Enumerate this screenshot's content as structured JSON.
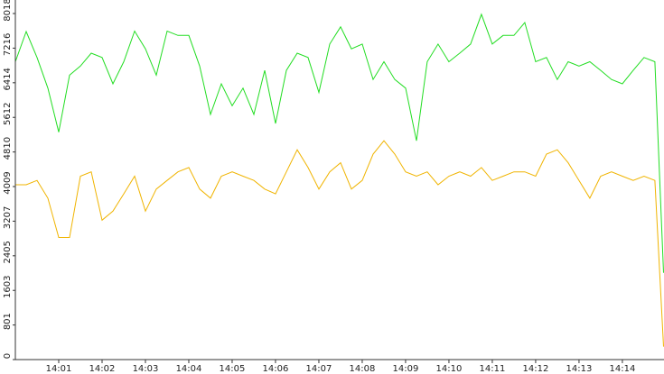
{
  "chart_data": {
    "type": "line",
    "x": [
      0,
      0.25,
      0.5,
      0.75,
      1,
      1.25,
      1.5,
      1.75,
      2,
      2.25,
      2.5,
      2.75,
      3,
      3.25,
      3.5,
      3.75,
      4,
      4.25,
      4.5,
      4.75,
      5,
      5.25,
      5.5,
      5.75,
      6,
      6.25,
      6.5,
      6.75,
      7,
      7.25,
      7.5,
      7.75,
      8,
      8.25,
      8.5,
      8.75,
      9,
      9.25,
      9.5,
      9.75,
      10,
      10.25,
      10.5,
      10.75,
      11,
      11.25,
      11.5,
      11.75,
      12,
      12.25,
      12.5,
      12.75,
      13,
      13.25,
      13.5,
      13.75,
      14,
      14.25,
      14.5,
      14.75,
      14.95
    ],
    "series": [
      {
        "color": "#22dd22",
        "values": [
          6900,
          7600,
          7000,
          6290,
          5270,
          6590,
          6800,
          7100,
          7000,
          6390,
          6900,
          7610,
          7200,
          6590,
          7610,
          7510,
          7510,
          6800,
          5680,
          6390,
          5880,
          6290,
          5680,
          6700,
          5470,
          6700,
          7100,
          7000,
          6190,
          7310,
          7710,
          7200,
          7310,
          6490,
          6900,
          6490,
          6290,
          5070,
          6900,
          7310,
          6900,
          7100,
          7310,
          8000,
          7310,
          7510,
          7510,
          7810,
          6900,
          7000,
          6490,
          6900,
          6800,
          6900,
          6700,
          6490,
          6390,
          6700,
          7000,
          6900,
          2010
        ]
      },
      {
        "color": "#f0b400",
        "values": [
          4050,
          4050,
          4150,
          3740,
          2830,
          2830,
          4250,
          4350,
          3230,
          3440,
          3840,
          4250,
          3440,
          3950,
          4150,
          4350,
          4450,
          3950,
          3740,
          4250,
          4350,
          4250,
          4150,
          3950,
          3840,
          4350,
          4860,
          4450,
          3950,
          4350,
          4560,
          3950,
          4150,
          4760,
          5070,
          4760,
          4350,
          4250,
          4350,
          4050,
          4250,
          4350,
          4250,
          4450,
          4150,
          4250,
          4350,
          4350,
          4250,
          4760,
          4860,
          4560,
          4150,
          3740,
          4250,
          4350,
          4250,
          4150,
          4250,
          4150,
          300
        ]
      }
    ],
    "xlim": [
      0,
      14.96
    ],
    "xticks": [
      {
        "value": 1,
        "label": "14:01"
      },
      {
        "value": 2,
        "label": "14:02"
      },
      {
        "value": 3,
        "label": "14:03"
      },
      {
        "value": 4,
        "label": "14:04"
      },
      {
        "value": 5,
        "label": "14:05"
      },
      {
        "value": 6,
        "label": "14:06"
      },
      {
        "value": 7,
        "label": "14:07"
      },
      {
        "value": 8,
        "label": "14:08"
      },
      {
        "value": 9,
        "label": "14:09"
      },
      {
        "value": 10,
        "label": "14:10"
      },
      {
        "value": 11,
        "label": "14:11"
      },
      {
        "value": 12,
        "label": "14:12"
      },
      {
        "value": 13,
        "label": "14:13"
      },
      {
        "value": 14,
        "label": "14:14"
      }
    ],
    "ylim": [
      0,
      8018
    ],
    "yticks": [
      0,
      801,
      1603,
      2405,
      3207,
      4009,
      4810,
      5612,
      6414,
      7216,
      8018
    ],
    "grid": false
  }
}
